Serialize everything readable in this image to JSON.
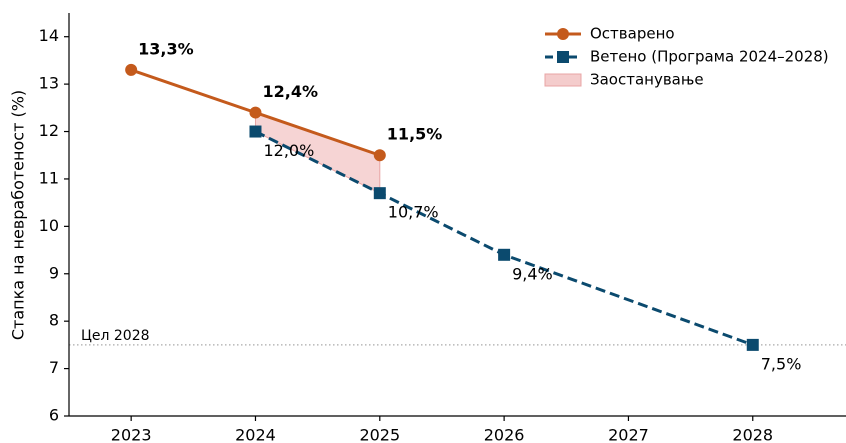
{
  "chart_data": {
    "type": "line",
    "y_label": "Стапка на невработеност (%)",
    "xlim": [
      2022.5,
      2028.75
    ],
    "xticks": [
      2023,
      2024,
      2025,
      2026,
      2027,
      2028
    ],
    "ylim": [
      6,
      14.5
    ],
    "yticks": [
      6,
      7,
      8,
      9,
      10,
      11,
      12,
      13,
      14
    ],
    "legend": "upper right",
    "series": [
      {
        "name": "Остварено",
        "color": "#c45a1c",
        "x": [
          2023,
          2024,
          2025
        ],
        "values": [
          13.3,
          12.4,
          11.5
        ],
        "value_labels": [
          "13,3%",
          "12,4%",
          "11,5%"
        ]
      },
      {
        "name": "Ветено (Програма 2024–2028)",
        "color": "#0b4a6e",
        "x": [
          2024,
          2025,
          2026,
          2028
        ],
        "values": [
          12.0,
          10.7,
          9.4,
          7.5
        ],
        "value_labels": [
          "12,0%",
          "10,7%",
          "9,4%",
          "7,5%"
        ]
      }
    ],
    "gap_area": {
      "name": "Заостанување",
      "color": "#f4cccc"
    },
    "reference_line": {
      "label": "Цел 2028",
      "value": 7.5,
      "color": "#aaaaaa"
    }
  }
}
